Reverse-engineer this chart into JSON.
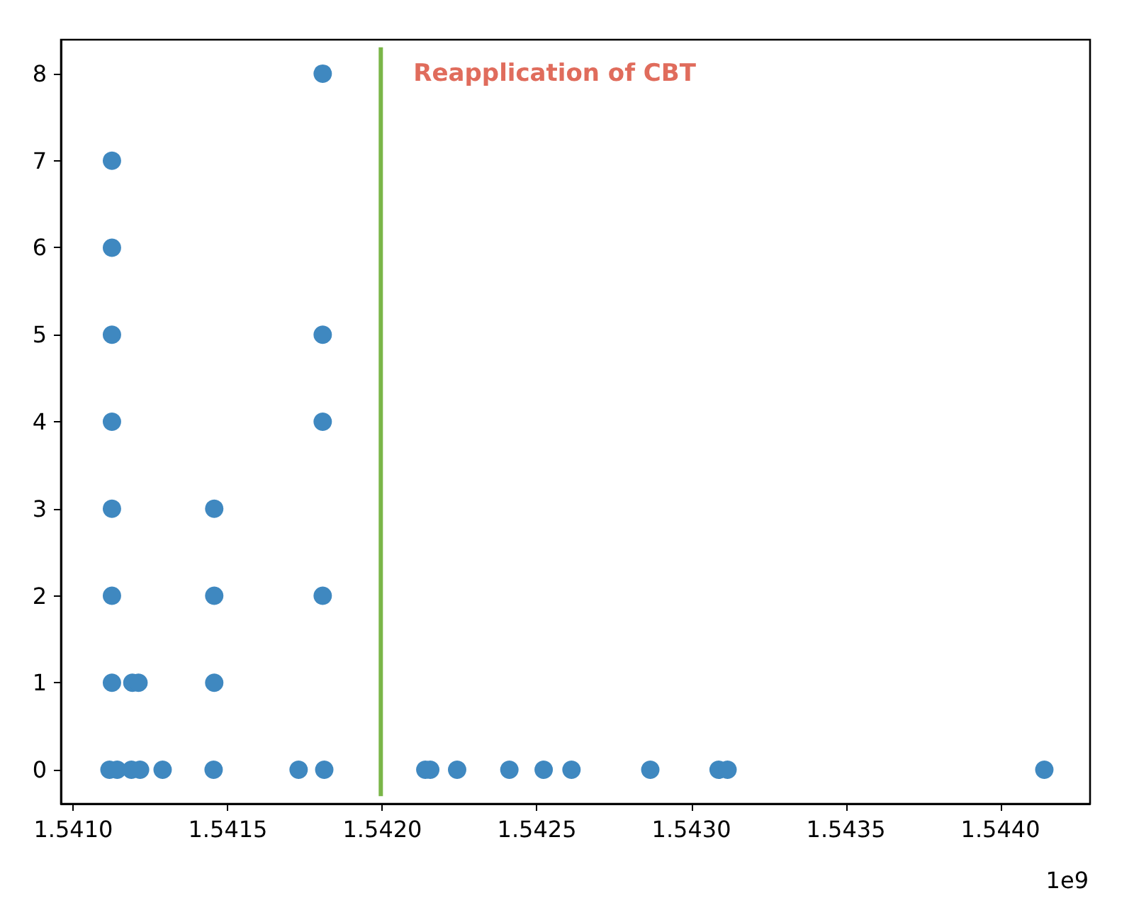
{
  "chart_data": {
    "type": "scatter",
    "annotations": [
      "1e9"
    ],
    "x": [
      1.541117,
      1.541142,
      1.541188,
      1.541216,
      1.541289,
      1.541454,
      1.541729,
      1.541812,
      1.542139,
      1.542155,
      1.542242,
      1.542411,
      1.542522,
      1.542612,
      1.542867,
      1.543088,
      1.543117,
      1.544142,
      1.541125,
      1.541191,
      1.541211,
      1.541456,
      1.541125,
      1.541456,
      1.541807,
      1.541125,
      1.541456,
      1.541125,
      1.541807,
      1.541125,
      1.541807,
      1.541125,
      1.541125,
      1.541807
    ],
    "series": [
      {
        "color": "#3f88c0",
        "values": [
          0,
          0,
          0,
          0,
          0,
          0,
          0,
          0,
          0,
          0,
          0,
          0,
          0,
          0,
          0,
          0,
          0,
          0,
          1,
          1,
          1,
          1,
          2,
          2,
          2,
          3,
          3,
          4,
          4,
          5,
          5,
          6,
          7,
          8
        ]
      }
    ],
    "xlim": [
      1.54096,
      1.54429
    ],
    "xticks": [
      {
        "value": 1.541,
        "label": "1.5410"
      },
      {
        "value": 1.5415,
        "label": "1.5415"
      },
      {
        "value": 1.542,
        "label": "1.5420"
      },
      {
        "value": 1.5425,
        "label": "1.5425"
      },
      {
        "value": 1.543,
        "label": "1.5430"
      },
      {
        "value": 1.5435,
        "label": "1.5435"
      },
      {
        "value": 1.544,
        "label": "1.5440"
      }
    ],
    "ylim": [
      -0.39,
      8.39
    ],
    "yticks": [
      0,
      1,
      2,
      3,
      4,
      5,
      6,
      7,
      8
    ],
    "ref_lines": [
      {
        "axis": "x",
        "value": 1.541995,
        "label": "Reapplication of CBT",
        "color": "#7ab648"
      }
    ],
    "marker": "circle",
    "grid": false
  }
}
